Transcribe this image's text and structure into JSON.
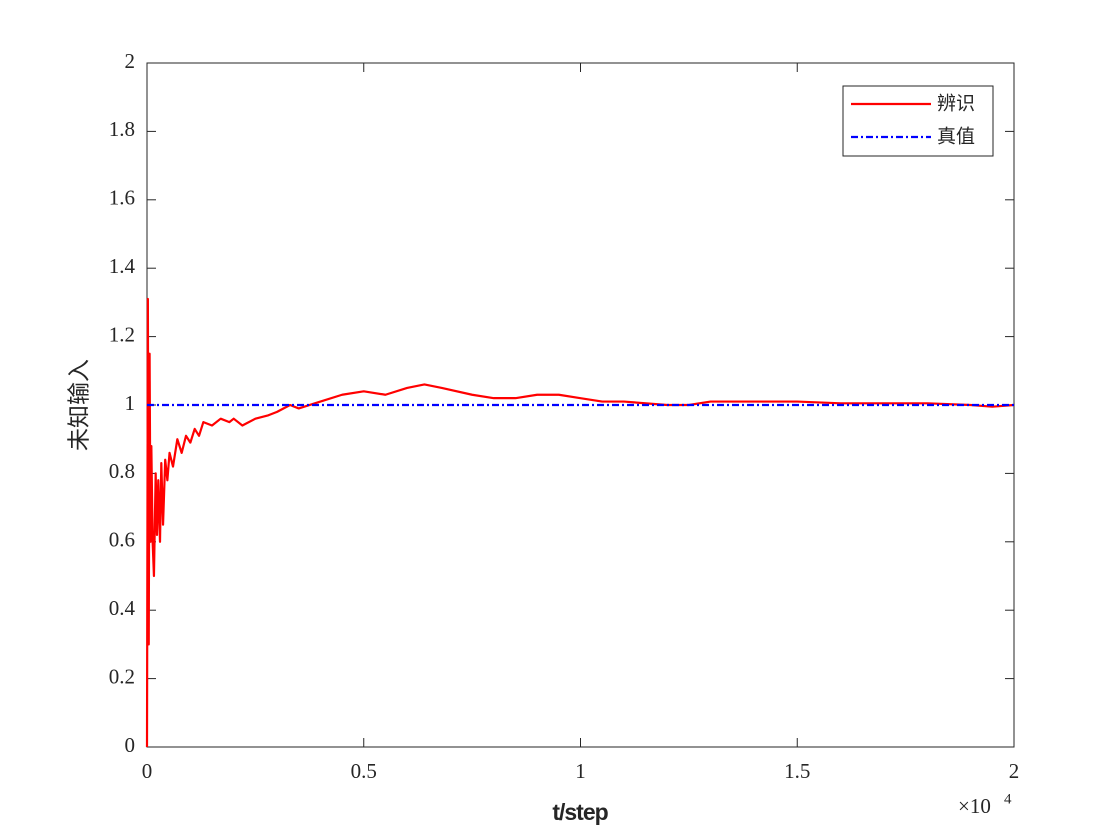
{
  "chart_data": {
    "type": "line",
    "xlabel": "t/step",
    "ylabel": "未知输入",
    "x_scale_label": "×10",
    "x_scale_exponent": "4",
    "xlim": [
      0,
      20000
    ],
    "xticks": [
      {
        "value": 0,
        "label": "0"
      },
      {
        "value": 5000,
        "label": "0.5"
      },
      {
        "value": 10000,
        "label": "1"
      },
      {
        "value": 15000,
        "label": "1.5"
      },
      {
        "value": 20000,
        "label": "2"
      }
    ],
    "ylim": [
      0,
      2
    ],
    "yticks": [
      0,
      0.2,
      0.4,
      0.6,
      0.8,
      1,
      1.2,
      1.4,
      1.6,
      1.8,
      2
    ],
    "grid": false,
    "legend": "upper right",
    "series": [
      {
        "name": "辨识",
        "color": "#ff0000",
        "dash": "solid",
        "x": [
          0,
          20,
          40,
          60,
          80,
          100,
          130,
          160,
          200,
          230,
          260,
          300,
          330,
          370,
          420,
          470,
          520,
          600,
          700,
          800,
          900,
          1000,
          1100,
          1200,
          1300,
          1500,
          1700,
          1900,
          2000,
          2200,
          2500,
          2800,
          3000,
          3300,
          3500,
          4000,
          4500,
          5000,
          5500,
          6000,
          6400,
          6800,
          7500,
          8000,
          8500,
          9000,
          9500,
          10000,
          10500,
          11000,
          12000,
          12500,
          13000,
          14000,
          14500,
          15000,
          16000,
          17000,
          18000,
          19000,
          19500,
          20000
        ],
        "values": [
          0,
          1.31,
          0.3,
          1.15,
          0.6,
          0.88,
          0.6,
          0.5,
          0.8,
          0.62,
          0.78,
          0.6,
          0.83,
          0.65,
          0.84,
          0.78,
          0.86,
          0.82,
          0.9,
          0.86,
          0.91,
          0.89,
          0.93,
          0.91,
          0.95,
          0.94,
          0.96,
          0.95,
          0.96,
          0.94,
          0.96,
          0.97,
          0.98,
          1.0,
          0.99,
          1.01,
          1.03,
          1.04,
          1.03,
          1.05,
          1.06,
          1.05,
          1.03,
          1.02,
          1.02,
          1.03,
          1.03,
          1.02,
          1.01,
          1.01,
          1.0,
          1.0,
          1.01,
          1.01,
          1.01,
          1.01,
          1.005,
          1.005,
          1.005,
          1.0,
          0.995,
          1.0
        ]
      },
      {
        "name": "真值",
        "color": "#0000ff",
        "dash": "dashdot",
        "x": [
          0,
          20000
        ],
        "values": [
          1,
          1
        ]
      }
    ]
  }
}
